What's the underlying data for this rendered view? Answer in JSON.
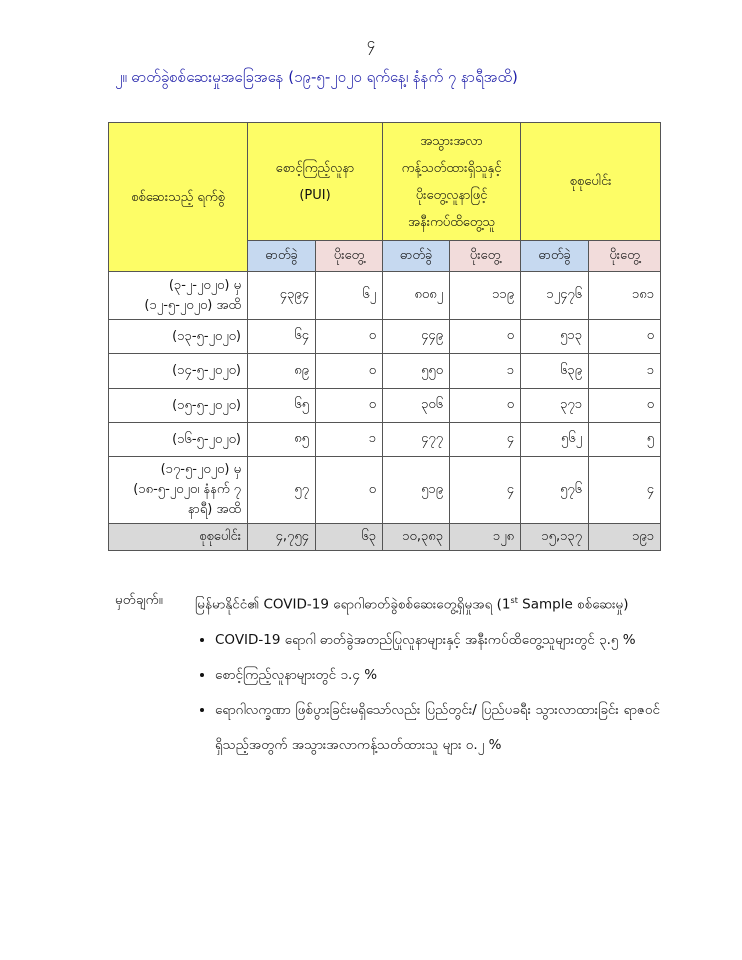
{
  "page_number": "၄",
  "title": "၂။ ဓာတ်ခွဲစစ်ဆေးမှုအခြေအနေ (၁၉-၅-၂၀၂၀ ရက်နေ့၊ နံနက် ၇ နာရီအထိ)",
  "table": {
    "header": {
      "date_col": "စစ်ဆေးသည့် ရက်စွဲ",
      "groups": [
        {
          "line1": "စောင့်ကြည့်လူနာ",
          "line2": "(PUI)"
        },
        {
          "line1": "အသွားအလာ",
          "line2": "ကန့်သတ်ထားရှိသူနှင့်",
          "line3": "ပိုးတွေ့လူနာဖြင့်",
          "line4": "အနီးကပ်ထိတွေ့သူ"
        },
        {
          "line1": "စုစုပေါင်း"
        }
      ],
      "sub": {
        "tested": "ဓာတ်ခွဲ",
        "positive": "ပိုးတွေ့"
      }
    },
    "rows": [
      {
        "date": "(၃-၂-၂၀၂၀) မှ (၁၂-၅-၂၀၂၀) အထိ",
        "values": [
          "၄၃၉၄",
          "၆၂",
          "၈၀၈၂",
          "၁၁၉",
          "၁၂၄၇၆",
          "၁၈၁"
        ]
      },
      {
        "date": "(၁၃-၅-၂၀၂၀)",
        "values": [
          "၆၄",
          "၀",
          "၄၄၉",
          "၀",
          "၅၁၃",
          "၀"
        ]
      },
      {
        "date": "(၁၄-၅-၂၀၂၀)",
        "values": [
          "၈၉",
          "၀",
          "၅၅၀",
          "၁",
          "၆၃၉",
          "၁"
        ]
      },
      {
        "date": "(၁၅-၅-၂၀၂၀)",
        "values": [
          "၆၅",
          "၀",
          "၃၀၆",
          "၀",
          "၃၇၁",
          "၀"
        ]
      },
      {
        "date": "(၁၆-၅-၂၀၂၀)",
        "values": [
          "၈၅",
          "၁",
          "၄၇၇",
          "၄",
          "၅၆၂",
          "၅"
        ]
      },
      {
        "date": "(၁၇-၅-၂၀၂၀) မှ (၁၈-၅-၂၀၂၀၊ နံနက် ၇ နာရီ) အထိ",
        "values": [
          "၅၇",
          "၀",
          "၅၁၉",
          "၄",
          "၅၇၆",
          "၄"
        ]
      }
    ],
    "total": {
      "label": "စုစုပေါင်း",
      "values": [
        "၄,၇၅၄",
        "၆၃",
        "၁၀,၃၈၃",
        "၁၂၈",
        "၁၅,၁၃၇",
        "၁၉၁"
      ]
    }
  },
  "note": {
    "heading": "မှတ်ချက်။",
    "intro_pre": "မြန်မာနိုင်ငံ၏ COVID-19 ရောဂါဓာတ်ခွဲစစ်ဆေးတွေ့ရှိမှုအရ (1",
    "intro_sup": "st",
    "intro_post": " Sample စစ်ဆေးမှု)",
    "bullets": [
      "COVID-19 ရောဂါ ဓာတ်ခွဲအတည်ပြုလူနာများနှင့် အနီးကပ်ထိတွေ့သူများတွင် ၃.၅ %",
      "စောင့်ကြည့်လူနာများတွင် ၁.၄ %",
      "ရောဂါလက္ခဏာ ဖြစ်ပွားခြင်းမရှိသော်လည်း ပြည်တွင်း/ ပြည်ပခရီး သွားလာထားခြင်း ရာဇဝင်ရှိသည့်အတွက် အသွားအလာကန့်သတ်ထားသူ များ ၀.၂ %"
    ]
  },
  "colors": {
    "title": "#1c1ca8",
    "header_yellow": "#fdfd66",
    "sub_blue": "#c6d9f0",
    "sub_pink": "#f2dcdb",
    "total_gray": "#d9d9d9"
  }
}
